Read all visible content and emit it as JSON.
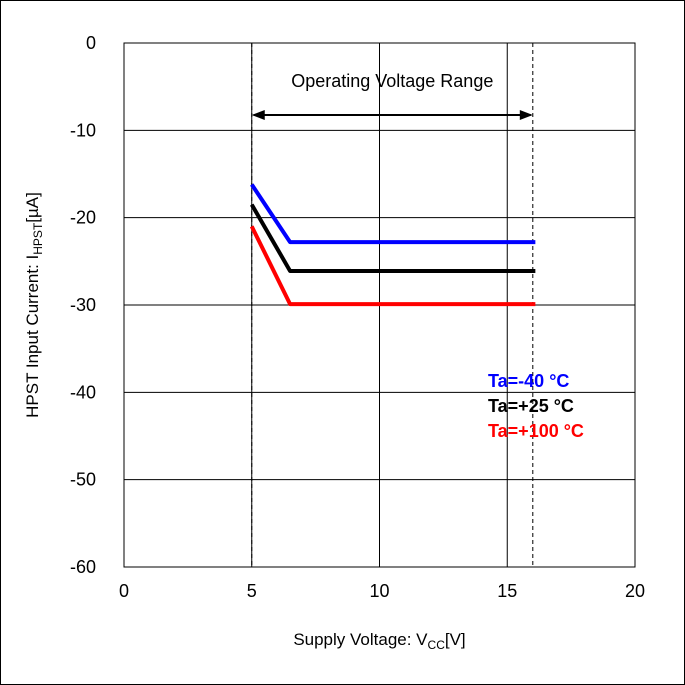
{
  "chart_data": {
    "type": "line",
    "xlabel_main": "Supply Voltage: V",
    "xlabel_sub": "CC",
    "xlabel_unit": "[V]",
    "ylabel_main": "HPST Input Current: I",
    "ylabel_sub": "HPST",
    "ylabel_unit": "[µA]",
    "xlim": [
      0,
      20
    ],
    "ylim": [
      -60,
      0
    ],
    "x_ticks": [
      0,
      5,
      10,
      15,
      20
    ],
    "y_ticks": [
      0,
      -10,
      -20,
      -30,
      -40,
      -50,
      -60
    ],
    "x_tick_labels": [
      "0",
      "5",
      "10",
      "15",
      "20"
    ],
    "y_tick_labels": [
      "0",
      "-10",
      "-20",
      "-30",
      "-40",
      "-50",
      "-60"
    ],
    "grid": true,
    "annotation": {
      "text": "Operating Voltage Range",
      "x_start": 5,
      "x_end": 16
    },
    "legend_position": "bottom-right",
    "series": [
      {
        "name": "Ta=-40 °C",
        "color": "#0000ff",
        "x": [
          5,
          6.5,
          16.1
        ],
        "y": [
          -16.2,
          -22.8,
          -22.8
        ]
      },
      {
        "name": "Ta=+25 °C",
        "color": "#000000",
        "x": [
          5,
          6.5,
          16.1
        ],
        "y": [
          -18.5,
          -26.1,
          -26.1
        ]
      },
      {
        "name": "Ta=+100 °C",
        "color": "#ff0000",
        "x": [
          5,
          6.5,
          16.1
        ],
        "y": [
          -21.0,
          -29.9,
          -29.9
        ]
      }
    ]
  }
}
